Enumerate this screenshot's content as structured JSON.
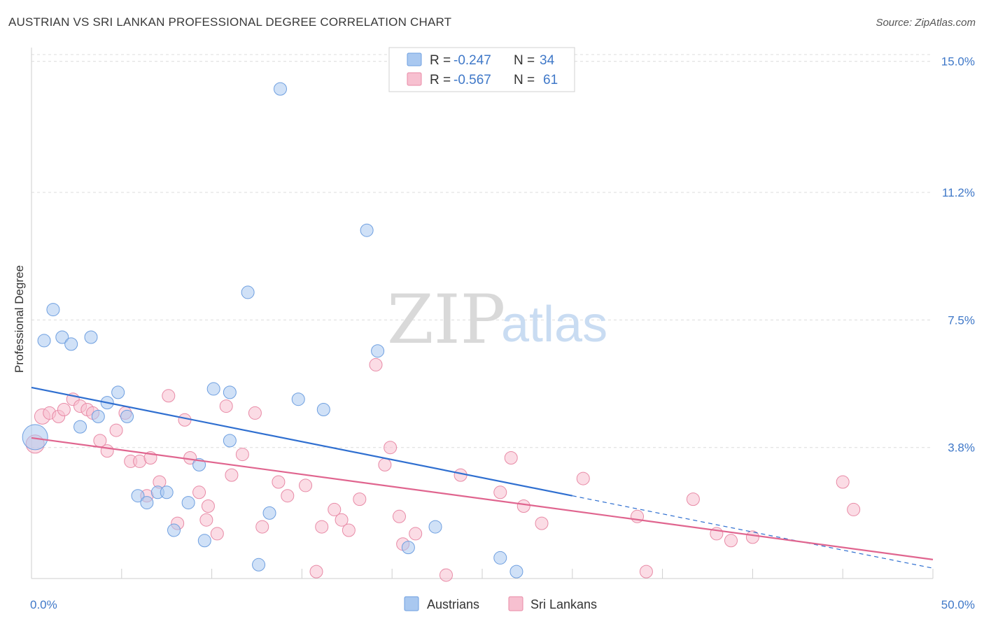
{
  "title": "AUSTRIAN VS SRI LANKAN PROFESSIONAL DEGREE CORRELATION CHART",
  "source": "Source: ZipAtlas.com",
  "watermark": {
    "zip": "ZIP",
    "atlas": "atlas"
  },
  "legend": {
    "rows": [
      {
        "r_label": "R = ",
        "r_value": "-0.247",
        "n_label": "N = ",
        "n_value": "34",
        "color": "#a9c8f0",
        "stroke": "#6e9fe0"
      },
      {
        "r_label": "R = ",
        "r_value": "-0.567",
        "n_label": "N = ",
        "n_value": "61",
        "color": "#f7c0d0",
        "stroke": "#e88aa6"
      }
    ]
  },
  "bottom_legend": [
    {
      "label": "Austrians",
      "color": "#a9c8f0",
      "stroke": "#6e9fe0"
    },
    {
      "label": "Sri Lankans",
      "color": "#f7c0d0",
      "stroke": "#e88aa6"
    }
  ],
  "chart_data": {
    "type": "scatter",
    "ylabel": "Professional Degree",
    "xlabel": "",
    "xlim": [
      0,
      50
    ],
    "ylim": [
      0,
      15.4
    ],
    "x_tick_labels": [
      {
        "value": 0,
        "label": "0.0%"
      },
      {
        "value": 50,
        "label": "50.0%"
      }
    ],
    "y_ticks": [
      {
        "value": 3.8,
        "label": "3.8%"
      },
      {
        "value": 7.5,
        "label": "7.5%"
      },
      {
        "value": 11.2,
        "label": "11.2%"
      },
      {
        "value": 15.0,
        "label": "15.0%"
      }
    ],
    "grid": true,
    "series": [
      {
        "name": "Austrians",
        "color": "#a9c8f0",
        "stroke": "#6e9fe0",
        "line_color": "#2f6fd0",
        "trend": {
          "x0": 0,
          "y0": 5.54,
          "x1": 30,
          "y1": 2.4,
          "dash_to_x": 50,
          "dash_to_y": 0.3
        },
        "points": [
          [
            0.2,
            4.1,
            18
          ],
          [
            0.7,
            6.9,
            9
          ],
          [
            1.2,
            7.8,
            9
          ],
          [
            1.7,
            7.0,
            9
          ],
          [
            2.2,
            6.8,
            9
          ],
          [
            3.3,
            7.0,
            9
          ],
          [
            2.7,
            4.4,
            9
          ],
          [
            3.7,
            4.7,
            9
          ],
          [
            4.2,
            5.1,
            9
          ],
          [
            4.8,
            5.4,
            9
          ],
          [
            5.3,
            4.7,
            9
          ],
          [
            5.9,
            2.4,
            9
          ],
          [
            6.4,
            2.2,
            9
          ],
          [
            7.0,
            2.5,
            9
          ],
          [
            7.5,
            2.5,
            9
          ],
          [
            7.9,
            1.4,
            9
          ],
          [
            8.7,
            2.2,
            9
          ],
          [
            9.3,
            3.3,
            9
          ],
          [
            9.6,
            1.1,
            9
          ],
          [
            10.1,
            5.5,
            9
          ],
          [
            11.0,
            5.4,
            9
          ],
          [
            11.0,
            4.0,
            9
          ],
          [
            12.0,
            8.3,
            9
          ],
          [
            12.6,
            0.4,
            9
          ],
          [
            13.2,
            1.9,
            9
          ],
          [
            13.8,
            14.2,
            9
          ],
          [
            14.8,
            5.2,
            9
          ],
          [
            16.2,
            4.9,
            9
          ],
          [
            18.6,
            10.1,
            9
          ],
          [
            19.2,
            6.6,
            9
          ],
          [
            20.9,
            0.9,
            9
          ],
          [
            22.4,
            1.5,
            9
          ],
          [
            26.0,
            0.6,
            9
          ],
          [
            26.9,
            0.2,
            9
          ]
        ]
      },
      {
        "name": "Sri Lankans",
        "color": "#f7c0d0",
        "stroke": "#e88aa6",
        "line_color": "#e0658f",
        "trend": {
          "x0": 0,
          "y0": 4.08,
          "x1": 50,
          "y1": 0.55
        },
        "points": [
          [
            0.2,
            3.9,
            13
          ],
          [
            0.6,
            4.7,
            11
          ],
          [
            1.0,
            4.8,
            9
          ],
          [
            1.5,
            4.7,
            9
          ],
          [
            1.8,
            4.9,
            9
          ],
          [
            2.3,
            5.2,
            9
          ],
          [
            2.7,
            5.0,
            9
          ],
          [
            3.1,
            4.9,
            9
          ],
          [
            3.4,
            4.8,
            9
          ],
          [
            3.8,
            4.0,
            9
          ],
          [
            4.2,
            3.7,
            9
          ],
          [
            4.7,
            4.3,
            9
          ],
          [
            5.2,
            4.8,
            9
          ],
          [
            5.5,
            3.4,
            9
          ],
          [
            6.0,
            3.4,
            9
          ],
          [
            6.6,
            3.5,
            9
          ],
          [
            6.4,
            2.4,
            9
          ],
          [
            7.1,
            2.8,
            9
          ],
          [
            7.6,
            5.3,
            9
          ],
          [
            8.1,
            1.6,
            9
          ],
          [
            8.5,
            4.6,
            9
          ],
          [
            8.8,
            3.5,
            9
          ],
          [
            9.3,
            2.5,
            9
          ],
          [
            9.7,
            1.7,
            9
          ],
          [
            9.8,
            2.1,
            9
          ],
          [
            10.3,
            1.3,
            9
          ],
          [
            10.8,
            5.0,
            9
          ],
          [
            11.1,
            3.0,
            9
          ],
          [
            11.7,
            3.6,
            9
          ],
          [
            12.4,
            4.8,
            9
          ],
          [
            12.8,
            1.5,
            9
          ],
          [
            13.7,
            2.8,
            9
          ],
          [
            14.2,
            2.4,
            9
          ],
          [
            15.2,
            2.7,
            9
          ],
          [
            15.8,
            0.2,
            9
          ],
          [
            16.1,
            1.5,
            9
          ],
          [
            16.8,
            2.0,
            9
          ],
          [
            17.2,
            1.7,
            9
          ],
          [
            17.6,
            1.4,
            9
          ],
          [
            18.2,
            2.3,
            9
          ],
          [
            19.1,
            6.2,
            9
          ],
          [
            19.6,
            3.3,
            9
          ],
          [
            19.9,
            3.8,
            9
          ],
          [
            20.4,
            1.8,
            9
          ],
          [
            20.6,
            1.0,
            9
          ],
          [
            21.3,
            1.3,
            9
          ],
          [
            23.0,
            0.1,
            9
          ],
          [
            23.8,
            3.0,
            9
          ],
          [
            26.0,
            2.5,
            9
          ],
          [
            26.6,
            3.5,
            9
          ],
          [
            27.3,
            2.1,
            9
          ],
          [
            28.3,
            1.6,
            9
          ],
          [
            30.6,
            2.9,
            9
          ],
          [
            33.6,
            1.8,
            9
          ],
          [
            34.1,
            0.2,
            9
          ],
          [
            36.7,
            2.3,
            9
          ],
          [
            38.0,
            1.3,
            9
          ],
          [
            38.8,
            1.1,
            9
          ],
          [
            40.0,
            1.2,
            9
          ],
          [
            45.0,
            2.8,
            9
          ],
          [
            45.6,
            2.0,
            9
          ]
        ]
      }
    ]
  }
}
